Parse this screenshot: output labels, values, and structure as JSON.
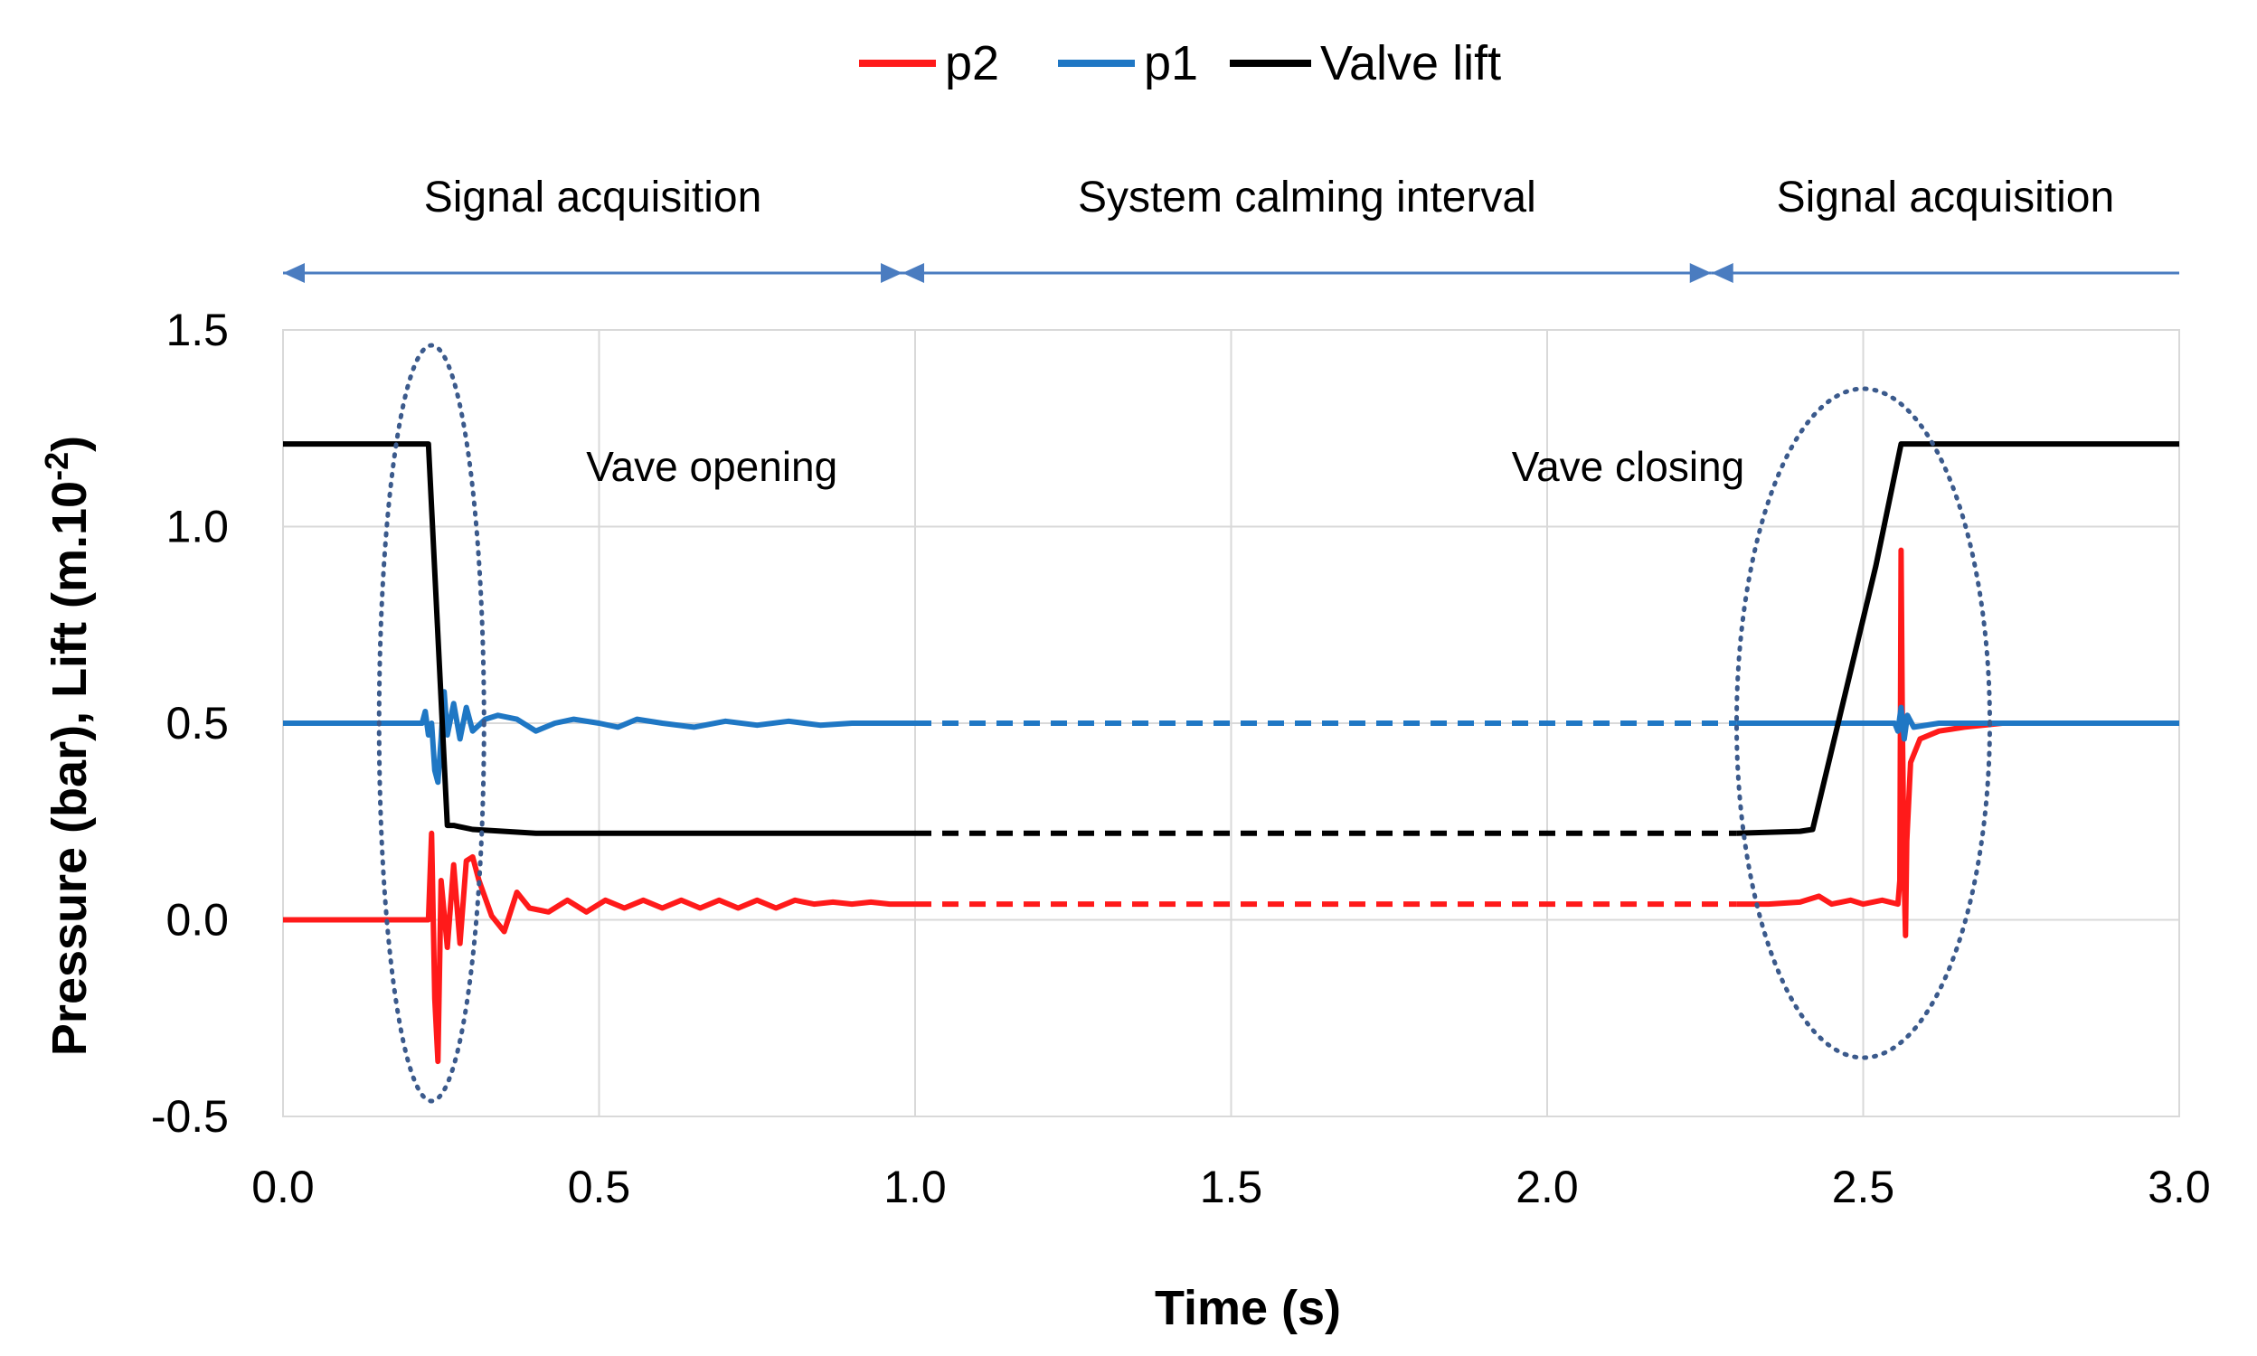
{
  "chart_data": {
    "type": "line",
    "xlabel": "Time (s)",
    "ylabel": "Pressure (bar), Lift (m.10",
    "ylabel_superscript": "-2",
    "ylabel_suffix": ")",
    "xlim": [
      0,
      3
    ],
    "ylim": [
      -0.5,
      1.5
    ],
    "x_ticks": [
      "0.0",
      "0.5",
      "1.0",
      "1.5",
      "2.0",
      "2.5",
      "3.0"
    ],
    "y_ticks": [
      "-0.5",
      "0.0",
      "0.5",
      "1.0",
      "1.5"
    ],
    "grid": true,
    "legend_position": "top-center",
    "series": [
      {
        "name": "p2",
        "color": "#ff1a1a",
        "solid": [
          [
            0.0,
            0.0
          ],
          [
            0.23,
            0.0
          ],
          [
            0.235,
            0.22
          ],
          [
            0.24,
            -0.2
          ],
          [
            0.245,
            -0.36
          ],
          [
            0.25,
            0.1
          ],
          [
            0.26,
            -0.07
          ],
          [
            0.27,
            0.14
          ],
          [
            0.28,
            -0.06
          ],
          [
            0.29,
            0.15
          ],
          [
            0.3,
            0.16
          ],
          [
            0.31,
            0.1
          ],
          [
            0.33,
            0.01
          ],
          [
            0.35,
            -0.03
          ],
          [
            0.37,
            0.07
          ],
          [
            0.39,
            0.03
          ],
          [
            0.42,
            0.02
          ],
          [
            0.45,
            0.05
          ],
          [
            0.48,
            0.02
          ],
          [
            0.51,
            0.05
          ],
          [
            0.54,
            0.03
          ],
          [
            0.57,
            0.05
          ],
          [
            0.6,
            0.03
          ],
          [
            0.63,
            0.05
          ],
          [
            0.66,
            0.03
          ],
          [
            0.69,
            0.05
          ],
          [
            0.72,
            0.03
          ],
          [
            0.75,
            0.05
          ],
          [
            0.78,
            0.03
          ],
          [
            0.81,
            0.05
          ],
          [
            0.84,
            0.04
          ],
          [
            0.87,
            0.045
          ],
          [
            0.9,
            0.04
          ],
          [
            0.93,
            0.045
          ],
          [
            0.96,
            0.04
          ],
          [
            1.0,
            0.04
          ]
        ],
        "dashed": [
          [
            1.0,
            0.04
          ],
          [
            2.3,
            0.04
          ]
        ],
        "solid2": [
          [
            2.3,
            0.04
          ],
          [
            2.35,
            0.04
          ],
          [
            2.4,
            0.045
          ],
          [
            2.43,
            0.06
          ],
          [
            2.45,
            0.04
          ],
          [
            2.48,
            0.05
          ],
          [
            2.5,
            0.04
          ],
          [
            2.53,
            0.05
          ],
          [
            2.555,
            0.04
          ],
          [
            2.558,
            0.1
          ],
          [
            2.56,
            0.94
          ],
          [
            2.562,
            0.5
          ],
          [
            2.565,
            0.1
          ],
          [
            2.567,
            -0.04
          ],
          [
            2.569,
            0.2
          ],
          [
            2.575,
            0.4
          ],
          [
            2.59,
            0.46
          ],
          [
            2.62,
            0.48
          ],
          [
            2.66,
            0.49
          ],
          [
            2.72,
            0.5
          ],
          [
            2.8,
            0.5
          ],
          [
            2.9,
            0.5
          ],
          [
            3.0,
            0.5
          ]
        ]
      },
      {
        "name": "p1",
        "color": "#1f77c4",
        "solid": [
          [
            0.0,
            0.5
          ],
          [
            0.22,
            0.5
          ],
          [
            0.225,
            0.53
          ],
          [
            0.23,
            0.47
          ],
          [
            0.235,
            0.5
          ],
          [
            0.24,
            0.38
          ],
          [
            0.245,
            0.35
          ],
          [
            0.25,
            0.46
          ],
          [
            0.255,
            0.58
          ],
          [
            0.26,
            0.47
          ],
          [
            0.27,
            0.55
          ],
          [
            0.28,
            0.46
          ],
          [
            0.29,
            0.54
          ],
          [
            0.3,
            0.48
          ],
          [
            0.32,
            0.51
          ],
          [
            0.34,
            0.52
          ],
          [
            0.37,
            0.51
          ],
          [
            0.4,
            0.48
          ],
          [
            0.43,
            0.5
          ],
          [
            0.46,
            0.51
          ],
          [
            0.5,
            0.5
          ],
          [
            0.53,
            0.49
          ],
          [
            0.56,
            0.51
          ],
          [
            0.6,
            0.5
          ],
          [
            0.65,
            0.49
          ],
          [
            0.7,
            0.505
          ],
          [
            0.75,
            0.495
          ],
          [
            0.8,
            0.505
          ],
          [
            0.85,
            0.495
          ],
          [
            0.9,
            0.5
          ],
          [
            0.95,
            0.5
          ],
          [
            1.0,
            0.5
          ]
        ],
        "dashed": [
          [
            1.0,
            0.5
          ],
          [
            2.3,
            0.5
          ]
        ],
        "solid2": [
          [
            2.3,
            0.5
          ],
          [
            2.5,
            0.5
          ],
          [
            2.55,
            0.5
          ],
          [
            2.555,
            0.48
          ],
          [
            2.56,
            0.54
          ],
          [
            2.565,
            0.46
          ],
          [
            2.57,
            0.52
          ],
          [
            2.58,
            0.49
          ],
          [
            2.62,
            0.5
          ],
          [
            2.7,
            0.5
          ],
          [
            2.8,
            0.5
          ],
          [
            3.0,
            0.5
          ]
        ]
      },
      {
        "name": "Valve lift",
        "color": "#000000",
        "solid": [
          [
            0.0,
            1.21
          ],
          [
            0.23,
            1.21
          ],
          [
            0.26,
            0.24
          ],
          [
            0.27,
            0.24
          ],
          [
            0.3,
            0.23
          ],
          [
            0.4,
            0.22
          ],
          [
            0.6,
            0.22
          ],
          [
            0.8,
            0.22
          ],
          [
            1.0,
            0.22
          ]
        ],
        "dashed": [
          [
            1.0,
            0.22
          ],
          [
            2.3,
            0.22
          ]
        ],
        "solid2": [
          [
            2.3,
            0.22
          ],
          [
            2.4,
            0.225
          ],
          [
            2.42,
            0.23
          ],
          [
            2.52,
            0.9
          ],
          [
            2.56,
            1.21
          ],
          [
            2.7,
            1.21
          ],
          [
            2.85,
            1.21
          ],
          [
            3.0,
            1.21
          ]
        ]
      }
    ],
    "phase_labels": [
      {
        "text": "Signal acquisition",
        "x_start": 0.0,
        "x_end": 0.98
      },
      {
        "text": "System calming interval",
        "x_start": 0.98,
        "x_end": 2.26
      },
      {
        "text": "Signal acquisition",
        "x_start": 2.26,
        "x_end": 3.0
      }
    ],
    "events": [
      {
        "text": "Vave opening",
        "x_center": 0.235
      },
      {
        "text": "Vave closing",
        "x_center": 2.5
      }
    ]
  }
}
